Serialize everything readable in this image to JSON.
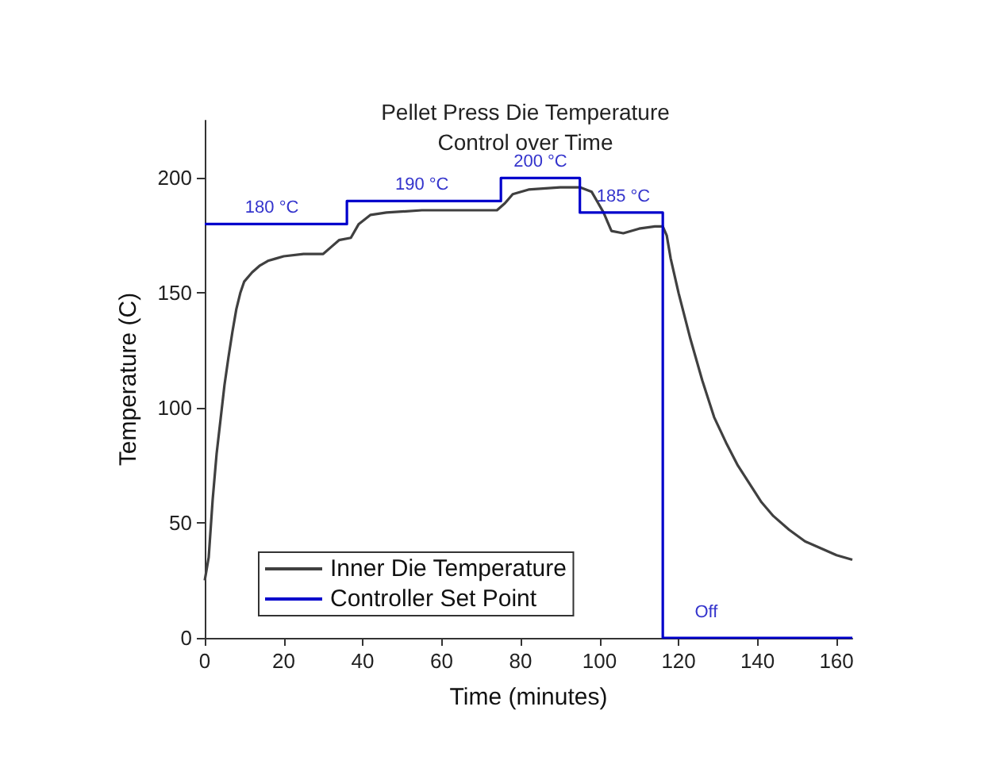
{
  "chart_data": {
    "type": "line",
    "title": "Pellet Press Die Temperature\nControl over Time",
    "xlabel": "Time (minutes)",
    "ylabel": "Temperature (C)",
    "xlim": [
      0,
      164
    ],
    "xticks": [
      0,
      20,
      40,
      60,
      80,
      100,
      120,
      140,
      160
    ],
    "ylim": [
      0,
      225
    ],
    "yticks": [
      0,
      50,
      100,
      150,
      200
    ],
    "grid": false,
    "legend": "bottom left",
    "marker": "none",
    "line_style": "solid",
    "series": [
      {
        "name": "Inner Die Temperature",
        "color": "#404040",
        "x": [
          0,
          1,
          2,
          3,
          4,
          5,
          6,
          7,
          8,
          9,
          10,
          12,
          14,
          16,
          18,
          20,
          25,
          30,
          32,
          34,
          37,
          39,
          42,
          46,
          55,
          65,
          74,
          76,
          78,
          82,
          90,
          95,
          98,
          101,
          103,
          106,
          110,
          114,
          116,
          117,
          118,
          120,
          123,
          126,
          129,
          132,
          135,
          138,
          141,
          144,
          148,
          152,
          156,
          160,
          164
        ],
        "values": [
          25,
          35,
          60,
          80,
          95,
          110,
          122,
          133,
          143,
          150,
          155,
          159,
          162,
          164,
          165,
          166,
          167,
          167,
          170,
          173,
          174,
          180,
          184,
          185,
          186,
          186,
          186,
          189,
          193,
          195,
          196,
          196,
          194,
          185,
          177,
          176,
          178,
          179,
          179,
          175,
          165,
          150,
          130,
          112,
          96,
          85,
          75,
          67,
          59,
          53,
          47,
          42,
          39,
          36,
          34
        ]
      },
      {
        "name": "Controller Set Point",
        "color": "#0000cc",
        "x": [
          0,
          36,
          36,
          75,
          75,
          95,
          95,
          116,
          116,
          164
        ],
        "values": [
          180,
          180,
          190,
          190,
          200,
          200,
          185,
          185,
          0,
          0
        ]
      }
    ],
    "annotations": [
      {
        "text": "180 °C",
        "x": 17,
        "y": 180
      },
      {
        "text": "190 °C",
        "x": 55,
        "y": 190
      },
      {
        "text": "200 °C",
        "x": 85,
        "y": 200
      },
      {
        "text": "185 °C",
        "x": 106,
        "y": 185
      },
      {
        "text": "Off",
        "x": 127,
        "y": 0
      }
    ]
  }
}
